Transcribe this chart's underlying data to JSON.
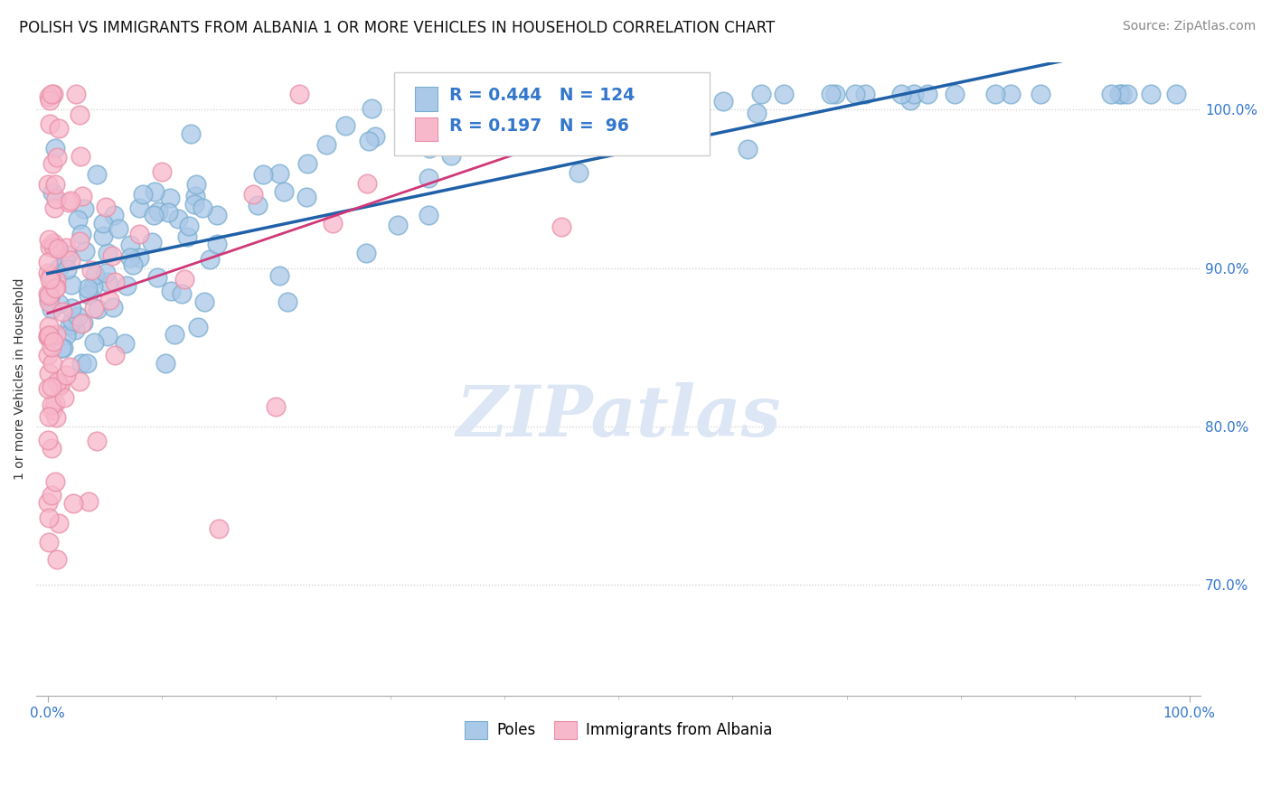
{
  "title": "POLISH VS IMMIGRANTS FROM ALBANIA 1 OR MORE VEHICLES IN HOUSEHOLD CORRELATION CHART",
  "source": "Source: ZipAtlas.com",
  "ylabel": "1 or more Vehicles in Household",
  "blue_R": 0.444,
  "blue_N": 124,
  "pink_R": 0.197,
  "pink_N": 96,
  "blue_fill": "#aac8e8",
  "blue_edge": "#7aaed0",
  "pink_fill": "#f8b8cc",
  "pink_edge": "#e890a8",
  "trend_blue_color": "#2060a8",
  "trend_pink_color": "#d03878",
  "watermark_color": "#dce6f4",
  "xlim": [
    -1,
    101
  ],
  "ylim": [
    63,
    103
  ],
  "ytick_positions": [
    70,
    80,
    90,
    100
  ],
  "legend_label_blue": "Poles",
  "legend_label_pink": "Immigrants from Albania",
  "title_fontsize": 12,
  "label_fontsize": 10,
  "tick_fontsize": 11,
  "source_fontsize": 10,
  "legend_fontsize": 12,
  "legend_box_color": "#dddddd",
  "axis_color": "#3377cc"
}
